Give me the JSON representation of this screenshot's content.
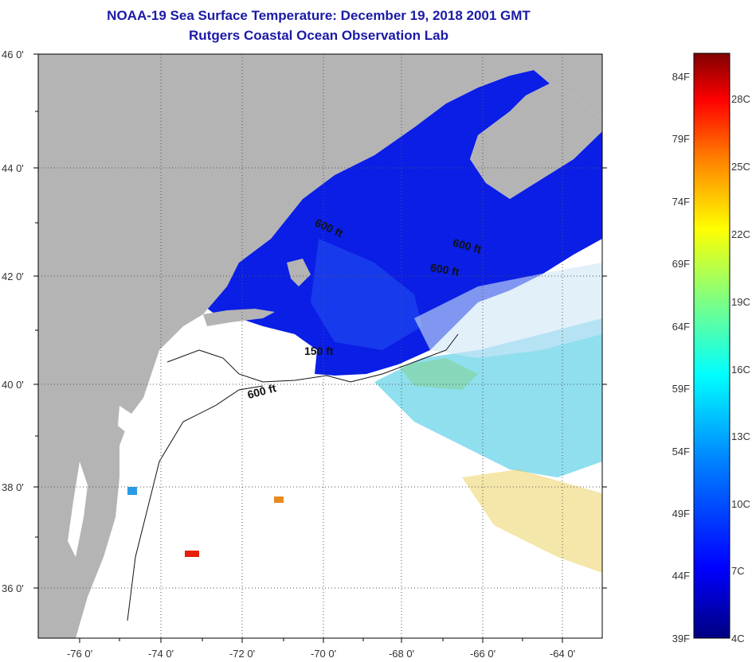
{
  "title": {
    "line1": "NOAA-19 Sea Surface Temperature:  December 19, 2018 2001 GMT",
    "line2": "Rutgers Coastal Ocean Observation Lab"
  },
  "map": {
    "lon_labels": [
      "-76 0'",
      "-74 0'",
      "-72 0'",
      "-70 0'",
      "-68 0'",
      "-66 0'",
      "-64 0'"
    ],
    "lat_labels": [
      "46 0'",
      "44 0'",
      "42 0'",
      "40 0'",
      "38 0'",
      "36 0'"
    ],
    "contour_labels": [
      "600 ft",
      "600 ft",
      "600 ft",
      "150 ft",
      "600 ft"
    ],
    "colors": {
      "land": "#b4b4b4",
      "no_data": "#ffffff",
      "cold_water": "#0a1ee6",
      "grid": "#555555"
    }
  },
  "colorbar": {
    "fahrenheit_labels": [
      "84F",
      "79F",
      "74F",
      "69F",
      "64F",
      "59F",
      "54F",
      "49F",
      "44F",
      "39F"
    ],
    "celsius_labels": [
      "28C",
      "25C",
      "22C",
      "19C",
      "16C",
      "13C",
      "10C",
      "7C",
      "4C"
    ],
    "colormap": [
      "#000080",
      "#0000ff",
      "#0080ff",
      "#00ffff",
      "#80ff80",
      "#ffff00",
      "#ff8000",
      "#ff0000",
      "#800000"
    ]
  }
}
